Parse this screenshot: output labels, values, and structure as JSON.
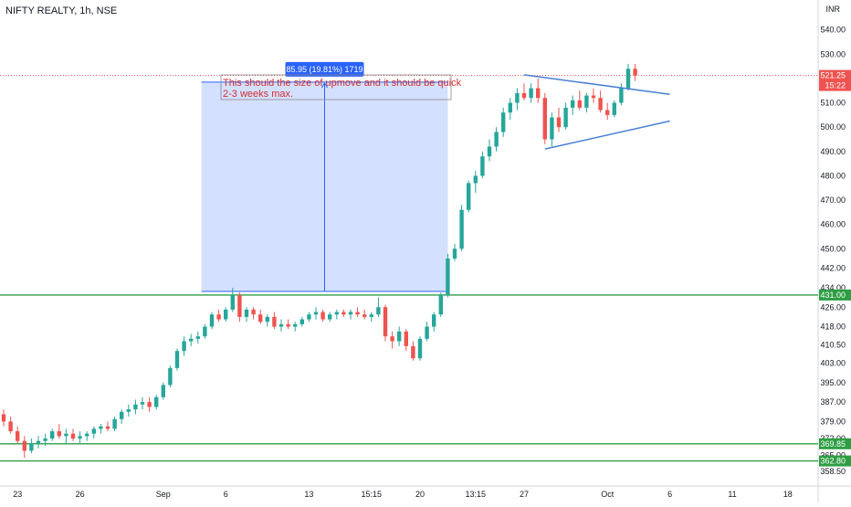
{
  "header": {
    "title": "NIFTY REALTY, 1h, NSE",
    "currency": "INR"
  },
  "chart_data": {
    "type": "candlestick",
    "title": "NIFTY REALTY, 1h, NSE",
    "ylim": [
      354,
      544
    ],
    "y_ticks": [
      540,
      530,
      520,
      510,
      500,
      490,
      480,
      470,
      460,
      450,
      442,
      434,
      426,
      418,
      410.5,
      403,
      395,
      387,
      379,
      372,
      365,
      358.5
    ],
    "y_tick_labels": [
      "540.00",
      "530.00",
      "520.00",
      "510.00",
      "500.00",
      "490.00",
      "480.00",
      "470.00",
      "460.00",
      "450.00",
      "442.00",
      "434.00",
      "426.00",
      "418.00",
      "410.50",
      "403.00",
      "395.00",
      "387.00",
      "379.00",
      "372.00",
      "365.00",
      "358.50"
    ],
    "x_ticks": [
      {
        "label": "23",
        "i": 2
      },
      {
        "label": "26",
        "i": 11
      },
      {
        "label": "Sep",
        "i": 23
      },
      {
        "label": "6",
        "i": 32
      },
      {
        "label": "13",
        "i": 44
      },
      {
        "label": "15:15",
        "i": 53
      },
      {
        "label": "20",
        "i": 60
      },
      {
        "label": "13:15",
        "i": 68
      },
      {
        "label": "27",
        "i": 75
      },
      {
        "label": "Oct",
        "i": 87
      },
      {
        "label": "6",
        "i": 96
      },
      {
        "label": "11",
        "i": 105
      },
      {
        "label": "18",
        "i": 113
      }
    ],
    "horizontal_levels": [
      {
        "value": 431.0,
        "label": "431.00",
        "color": "#2e9e44"
      },
      {
        "value": 369.85,
        "label": "369.85",
        "color": "#2e9e44"
      },
      {
        "value": 362.8,
        "label": "362.80",
        "color": "#2e9e44"
      }
    ],
    "last_price": {
      "value": 521.25,
      "label": "521.25",
      "countdown": "15:22",
      "color": "#ef5350"
    },
    "trendlines": [
      {
        "from": [
          75,
          521.5
        ],
        "to": [
          96,
          513.5
        ],
        "color": "#4a7fd6"
      },
      {
        "from": [
          78,
          491
        ],
        "to": [
          96,
          502.5
        ],
        "color": "#4a7fd6"
      }
    ],
    "measure_box": {
      "x_from": 28.5,
      "x_to": 64,
      "y_from": 432.5,
      "y_to": 518.5,
      "label": "85.95 (19.81%) 1719",
      "note": "This should the size of upmove and it should be quick 2-3 weeks max."
    },
    "candles": [
      [
        382,
        384,
        377,
        379
      ],
      [
        379,
        381,
        374,
        375
      ],
      [
        375,
        377,
        370,
        371
      ],
      [
        371,
        373,
        364,
        367
      ],
      [
        367,
        372,
        366,
        370
      ],
      [
        370,
        373,
        368,
        371
      ],
      [
        371,
        374,
        369,
        372
      ],
      [
        372,
        376,
        371,
        375
      ],
      [
        375,
        378,
        372,
        373
      ],
      [
        373,
        376,
        370,
        374
      ],
      [
        374,
        376,
        371,
        372
      ],
      [
        372,
        375,
        370,
        373
      ],
      [
        373,
        375,
        371,
        374
      ],
      [
        374,
        377,
        372,
        376
      ],
      [
        376,
        378,
        374,
        377
      ],
      [
        377,
        379,
        375,
        376
      ],
      [
        376,
        381,
        375,
        380
      ],
      [
        380,
        384,
        378,
        383
      ],
      [
        383,
        386,
        381,
        384
      ],
      [
        384,
        388,
        382,
        386
      ],
      [
        386,
        389,
        384,
        387
      ],
      [
        387,
        389,
        383,
        385
      ],
      [
        385,
        390,
        384,
        389
      ],
      [
        389,
        395,
        388,
        394
      ],
      [
        394,
        402,
        393,
        401
      ],
      [
        401,
        409,
        400,
        408
      ],
      [
        408,
        414,
        406,
        412
      ],
      [
        412,
        415,
        410,
        413
      ],
      [
        413,
        416,
        411,
        414
      ],
      [
        414,
        419,
        413,
        418
      ],
      [
        418,
        424,
        417,
        423
      ],
      [
        423,
        425,
        420,
        421
      ],
      [
        421,
        426,
        420,
        425
      ],
      [
        425,
        434,
        424,
        431
      ],
      [
        431,
        432,
        420,
        422
      ],
      [
        422,
        426,
        420,
        425
      ],
      [
        425,
        426,
        421,
        423
      ],
      [
        423,
        425,
        419,
        420
      ],
      [
        420,
        423,
        418,
        422
      ],
      [
        422,
        424,
        417,
        418
      ],
      [
        418,
        421,
        416,
        419
      ],
      [
        419,
        421,
        417,
        418
      ],
      [
        418,
        420,
        416,
        419
      ],
      [
        419,
        422,
        418,
        421
      ],
      [
        421,
        424,
        420,
        423
      ],
      [
        423,
        426,
        421,
        424
      ],
      [
        424,
        425,
        420,
        421
      ],
      [
        421,
        424,
        420,
        423
      ],
      [
        423,
        425,
        421,
        424
      ],
      [
        424,
        425,
        422,
        423
      ],
      [
        423,
        425,
        421,
        424
      ],
      [
        424,
        426,
        422,
        423
      ],
      [
        423,
        425,
        421,
        422
      ],
      [
        422,
        424,
        420,
        423
      ],
      [
        423,
        430,
        422,
        426
      ],
      [
        426,
        427,
        412,
        414
      ],
      [
        414,
        416,
        409,
        412
      ],
      [
        412,
        418,
        410,
        416
      ],
      [
        416,
        417,
        408,
        410
      ],
      [
        410,
        412,
        404,
        405
      ],
      [
        405,
        414,
        404,
        413
      ],
      [
        413,
        420,
        412,
        418
      ],
      [
        418,
        424,
        416,
        423
      ],
      [
        423,
        432,
        422,
        431
      ],
      [
        431,
        448,
        430,
        446
      ],
      [
        446,
        452,
        445,
        450
      ],
      [
        450,
        468,
        449,
        466
      ],
      [
        466,
        478,
        465,
        477
      ],
      [
        477,
        482,
        473,
        480
      ],
      [
        480,
        490,
        479,
        488
      ],
      [
        488,
        495,
        486,
        492
      ],
      [
        492,
        500,
        490,
        498
      ],
      [
        498,
        508,
        496,
        506
      ],
      [
        506,
        512,
        503,
        510
      ],
      [
        510,
        516,
        507,
        514
      ],
      [
        514,
        518,
        511,
        512
      ],
      [
        512,
        518,
        510,
        516
      ],
      [
        516,
        520,
        510,
        512
      ],
      [
        512,
        514,
        493,
        495
      ],
      [
        495,
        506,
        492,
        504
      ],
      [
        504,
        508,
        498,
        500
      ],
      [
        500,
        510,
        499,
        508
      ],
      [
        508,
        513,
        505,
        511
      ],
      [
        511,
        515,
        507,
        508
      ],
      [
        508,
        514,
        506,
        513
      ],
      [
        513,
        516,
        510,
        512
      ],
      [
        512,
        515,
        506,
        507
      ],
      [
        507,
        510,
        503,
        505
      ],
      [
        505,
        511,
        504,
        510
      ],
      [
        510,
        518,
        509,
        516
      ],
      [
        516,
        526,
        515,
        524
      ],
      [
        524,
        526,
        519,
        521.25
      ]
    ]
  }
}
